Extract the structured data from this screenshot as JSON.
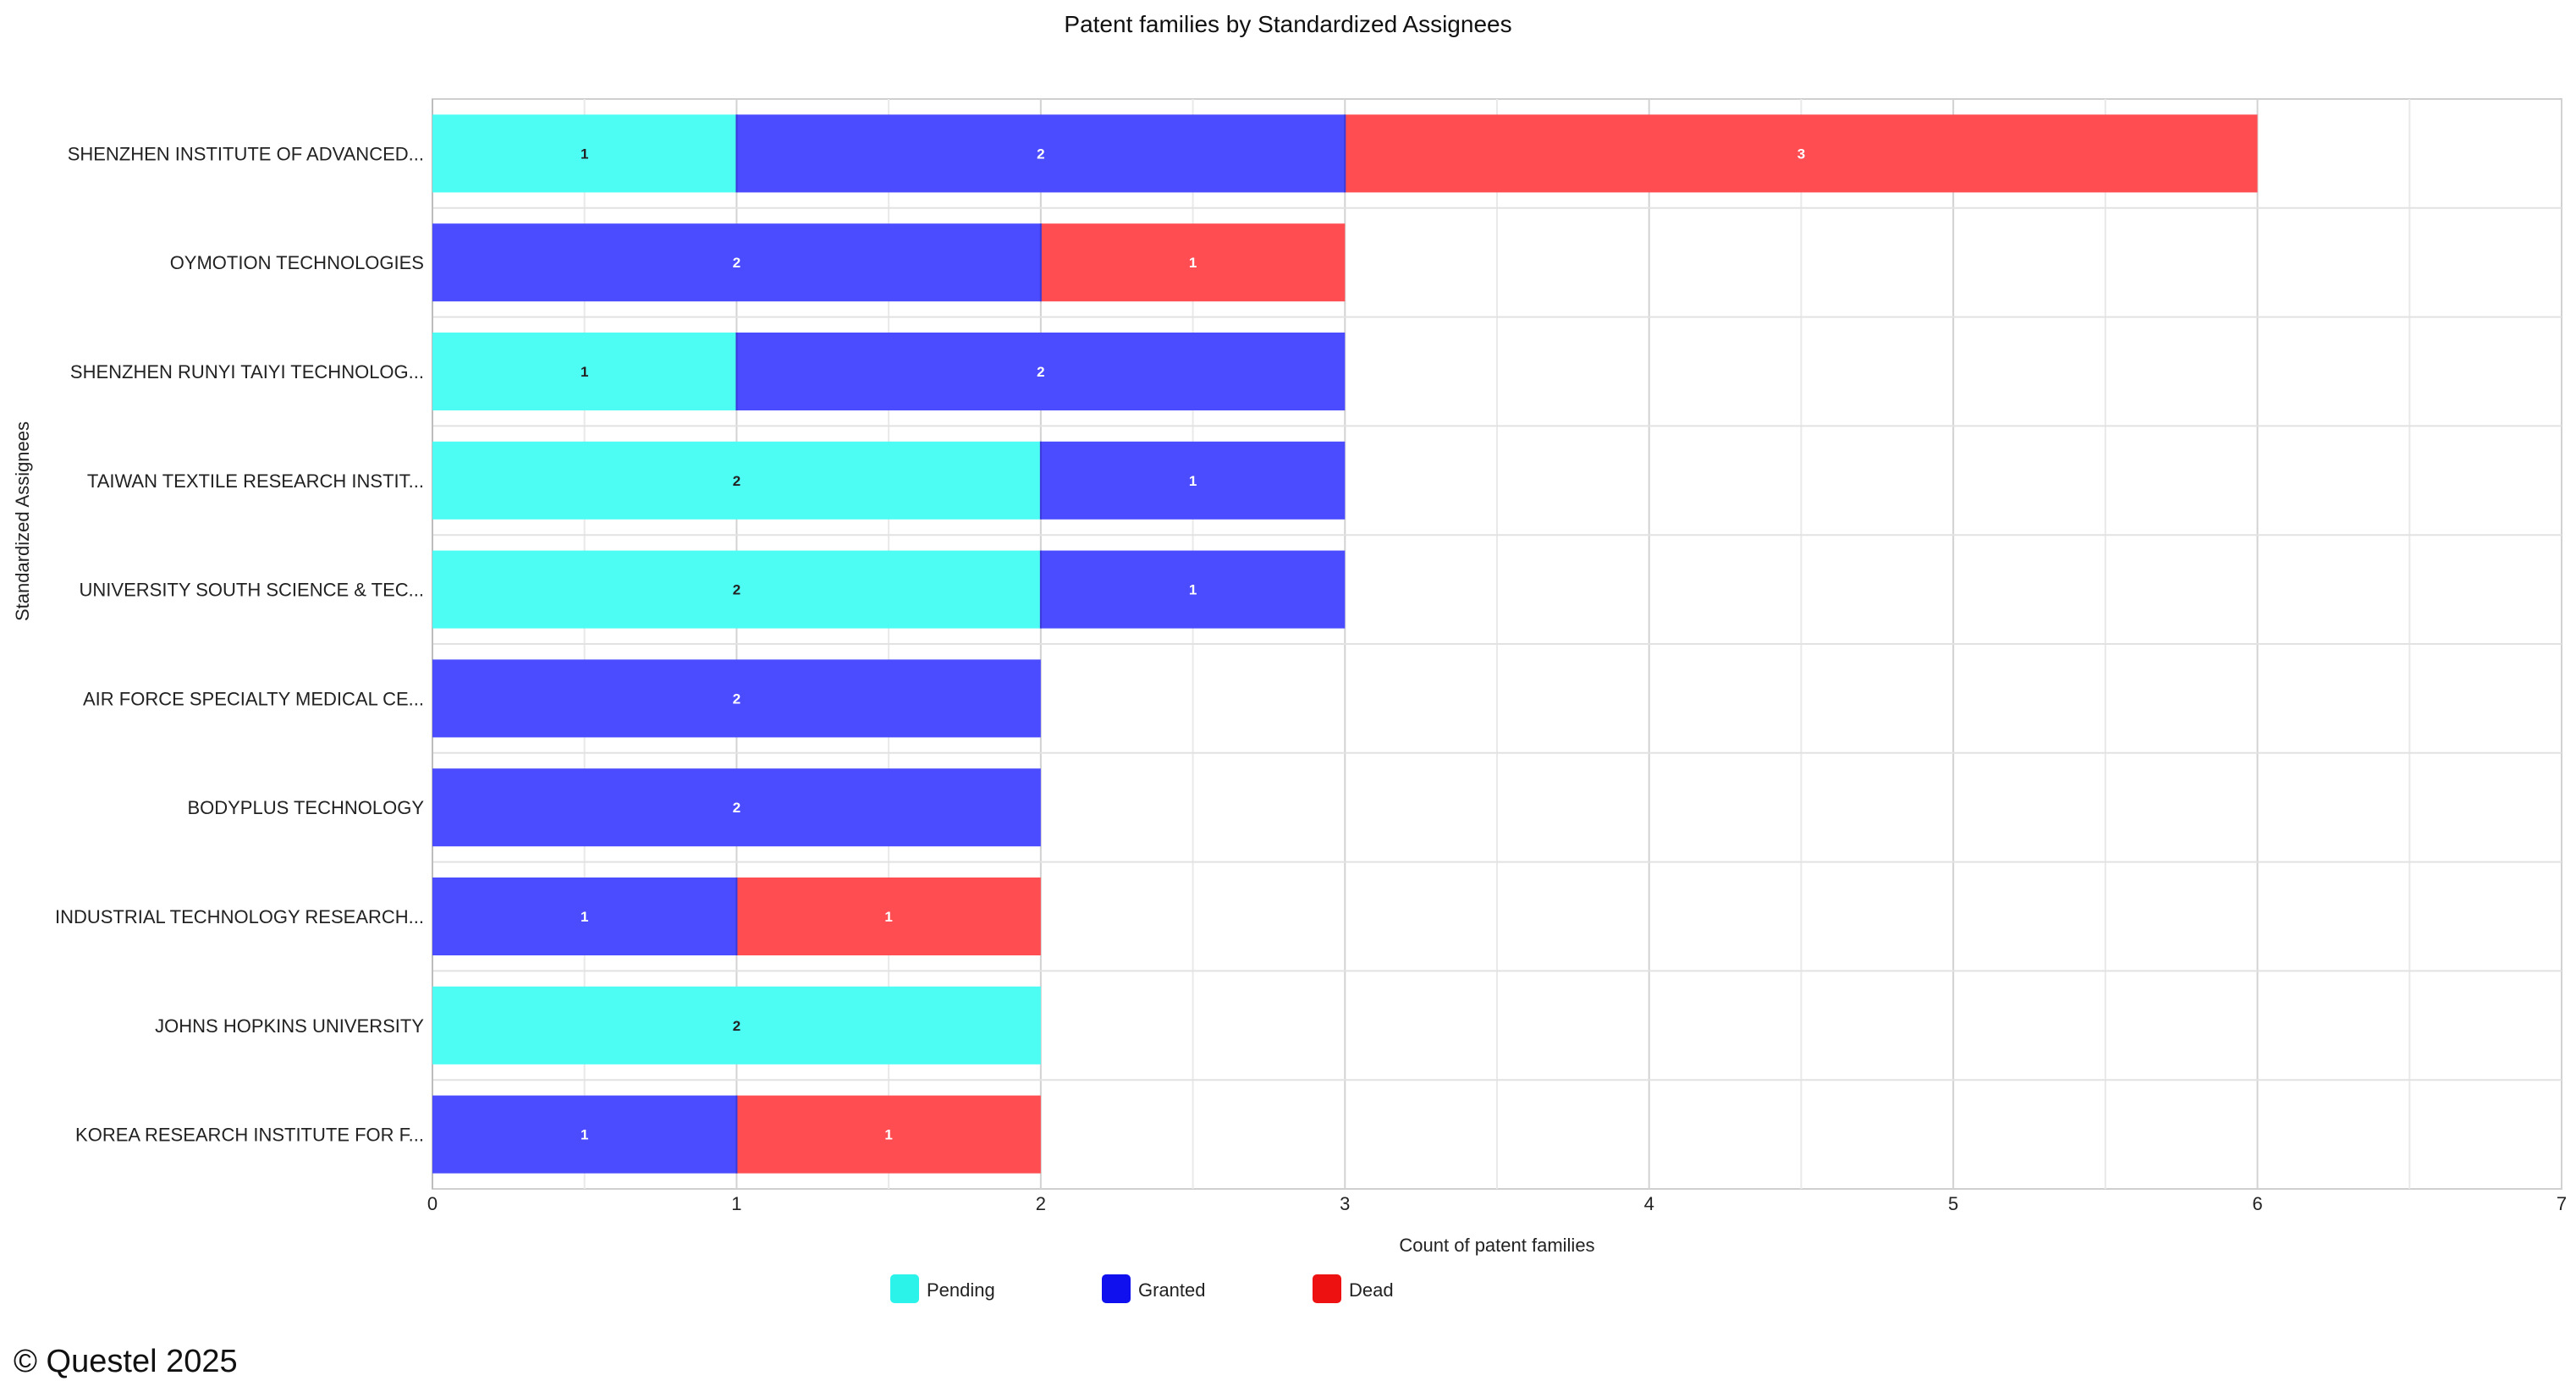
{
  "chart_data": {
    "type": "bar",
    "orientation": "horizontal",
    "stacked": true,
    "title": "Patent families by Standardized Assignees",
    "xlabel": "Count of patent families",
    "ylabel": "Standardized Assignees",
    "xlim": [
      0,
      7
    ],
    "xticks": [
      0,
      1,
      2,
      3,
      4,
      5,
      6,
      7
    ],
    "grid": true,
    "legend_position": "bottom-center",
    "categories": [
      "SHENZHEN INSTITUTE OF ADVANCED...",
      "OYMOTION TECHNOLOGIES",
      "SHENZHEN RUNYI TAIYI TECHNOLOG...",
      "TAIWAN TEXTILE RESEARCH INSTIT...",
      "UNIVERSITY SOUTH SCIENCE & TEC...",
      "AIR FORCE SPECIALTY MEDICAL CE...",
      "BODYPLUS TECHNOLOGY",
      "INDUSTRIAL TECHNOLOGY RESEARCH...",
      "JOHNS HOPKINS UNIVERSITY",
      "KOREA RESEARCH INSTITUTE FOR F..."
    ],
    "series": [
      {
        "name": "Pending",
        "color": "#4dfdf4",
        "label_color": "#222222",
        "values": [
          1,
          0,
          1,
          2,
          2,
          0,
          0,
          0,
          2,
          0
        ]
      },
      {
        "name": "Granted",
        "color": "#4b4bff",
        "label_color": "#ffffff",
        "values": [
          2,
          2,
          2,
          1,
          1,
          2,
          2,
          1,
          0,
          1
        ]
      },
      {
        "name": "Dead",
        "color": "#ff4d52",
        "label_color": "#ffffff",
        "values": [
          3,
          1,
          0,
          0,
          0,
          0,
          0,
          1,
          0,
          1
        ]
      }
    ]
  },
  "legend_swatch_colors": {
    "Pending": "#2cf3ea",
    "Granted": "#1010ee",
    "Dead": "#ee1111"
  },
  "footer": {
    "copyright": "© Questel 2025"
  }
}
